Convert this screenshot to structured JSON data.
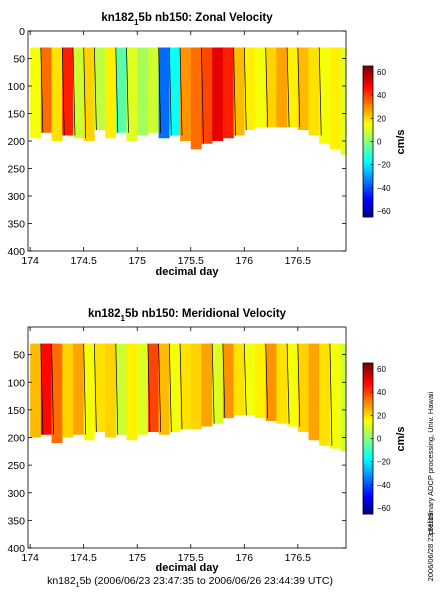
{
  "colors": {
    "colormap": [
      "#000080",
      "#0000ff",
      "#0080ff",
      "#00ffff",
      "#80ff80",
      "#ffff00",
      "#ff8000",
      "#ff0000",
      "#800000"
    ],
    "axis": "#000000",
    "background": "#ffffff"
  },
  "charts": [
    {
      "title_main": "kn182",
      "title_sub": "1",
      "title_rest": "5b nb150: Zonal Velocity",
      "xlabel": "decimal day",
      "cbar_label": "cm/s"
    },
    {
      "title_main": "kn182",
      "title_sub": "1",
      "title_rest": "5b nb150: Meridional Velocity",
      "xlabel": "decimal day",
      "cbar_label": "cm/s"
    }
  ],
  "footer": {
    "cruise_main": "kn182",
    "cruise_sub": "1",
    "cruise_rest": "5b (2006/06/23 23:47:35 to 2006/06/26 23:44:39 UTC)"
  },
  "side_labels": {
    "processing": "preliminary ADCP processing,  Univ. Hawaii",
    "timestamp": "2006/06/28 23:51:19"
  },
  "chart_data": [
    {
      "type": "heatmap",
      "title": "kn182_1_5b nb150: Zonal Velocity",
      "xlabel": "decimal day",
      "ylabel": "",
      "colorbar_label": "cm/s",
      "xlim": [
        173.98,
        176.95
      ],
      "ylim": [
        400,
        0
      ],
      "xticks": [
        174,
        174.5,
        175,
        175.5,
        176,
        176.5
      ],
      "xtick_labels": [
        "174",
        "174.5",
        "175",
        "175.5",
        "176",
        "176.5"
      ],
      "yticks": [
        0,
        50,
        100,
        150,
        200,
        250,
        300,
        350,
        400
      ],
      "ytick_labels": [
        "0",
        "50",
        "100",
        "150",
        "200",
        "250",
        "300",
        "350",
        "400"
      ],
      "clim": [
        -65,
        65
      ],
      "cbar_ticks": [
        60,
        40,
        20,
        0,
        -20,
        -40,
        -60
      ],
      "cbar_tick_labels": [
        "60",
        "40",
        "20",
        "0",
        "−20",
        "−40",
        "−60"
      ],
      "depth_top": 30,
      "x": [
        174.0,
        174.1,
        174.2,
        174.3,
        174.4,
        174.5,
        174.6,
        174.7,
        174.8,
        174.9,
        175.0,
        175.1,
        175.2,
        175.3,
        175.4,
        175.5,
        175.6,
        175.7,
        175.8,
        175.9,
        176.0,
        176.1,
        176.2,
        176.3,
        176.4,
        176.5,
        176.6,
        176.7,
        176.8,
        176.9
      ],
      "bottom_depth": [
        195,
        185,
        200,
        190,
        195,
        200,
        180,
        195,
        185,
        200,
        190,
        185,
        195,
        190,
        200,
        215,
        205,
        200,
        195,
        190,
        180,
        175,
        175,
        175,
        175,
        180,
        190,
        205,
        215,
        225
      ],
      "velocity": [
        15,
        35,
        20,
        45,
        10,
        22,
        8,
        18,
        -5,
        12,
        5,
        10,
        -35,
        -15,
        30,
        35,
        40,
        52,
        45,
        25,
        18,
        15,
        22,
        28,
        18,
        25,
        20,
        15,
        18,
        12
      ]
    },
    {
      "type": "heatmap",
      "title": "kn182_1_5b nb150: Meridional Velocity",
      "xlabel": "decimal day",
      "ylabel": "",
      "colorbar_label": "cm/s",
      "xlim": [
        173.98,
        176.95
      ],
      "ylim": [
        400,
        0
      ],
      "xticks": [
        174,
        174.5,
        175,
        175.5,
        176,
        176.5
      ],
      "xtick_labels": [
        "174",
        "174.5",
        "175",
        "175.5",
        "176",
        "176.5"
      ],
      "yticks": [
        50,
        100,
        150,
        200,
        250,
        300,
        350,
        400
      ],
      "ytick_labels": [
        "50",
        "100",
        "150",
        "200",
        "250",
        "300",
        "350",
        "400"
      ],
      "clim": [
        -65,
        65
      ],
      "cbar_ticks": [
        60,
        40,
        20,
        0,
        -20,
        -40,
        -60
      ],
      "cbar_tick_labels": [
        "60",
        "40",
        "20",
        "0",
        "−20",
        "−40",
        "−60"
      ],
      "depth_top": 30,
      "x": [
        174.0,
        174.1,
        174.2,
        174.3,
        174.4,
        174.5,
        174.6,
        174.7,
        174.8,
        174.9,
        175.0,
        175.1,
        175.2,
        175.3,
        175.4,
        175.5,
        175.6,
        175.7,
        175.8,
        175.9,
        176.0,
        176.1,
        176.2,
        176.3,
        176.4,
        176.5,
        176.6,
        176.7,
        176.8,
        176.9
      ],
      "bottom_depth": [
        200,
        195,
        210,
        200,
        195,
        205,
        190,
        200,
        195,
        205,
        195,
        190,
        195,
        190,
        185,
        185,
        180,
        175,
        165,
        160,
        160,
        165,
        170,
        175,
        180,
        190,
        205,
        215,
        220,
        225
      ],
      "velocity": [
        25,
        48,
        35,
        22,
        28,
        15,
        20,
        22,
        10,
        18,
        12,
        40,
        25,
        15,
        20,
        22,
        28,
        12,
        30,
        20,
        15,
        18,
        30,
        20,
        15,
        22,
        28,
        20,
        15,
        10
      ]
    }
  ]
}
